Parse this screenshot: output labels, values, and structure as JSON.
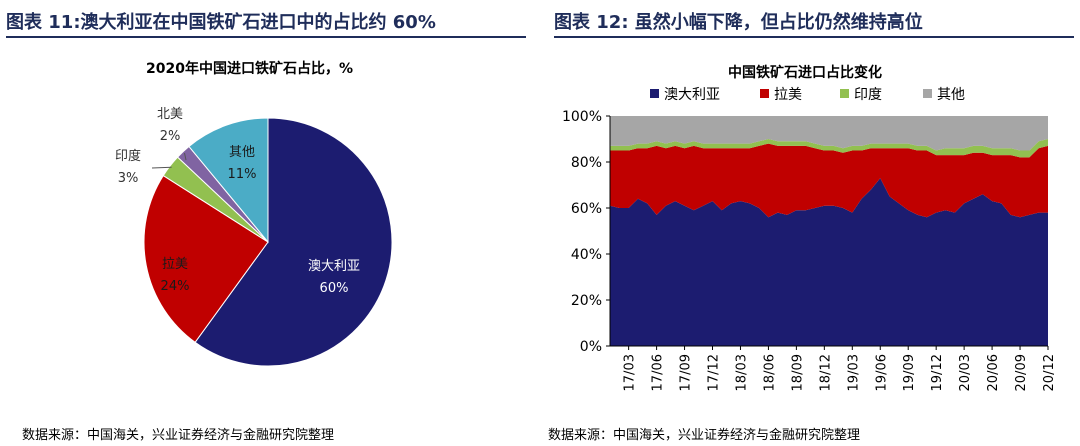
{
  "figures": {
    "left_title": "图表 11:澳大利亚在中国铁矿石进口中的占比约 60%",
    "right_title": "图表 12: 虽然小幅下降，但占比仍然维持高位",
    "left_source": "数据来源：中国海关，兴业证券经济与金融研究院整理",
    "right_source": "数据来源：中国海关，兴业证券经济与金融研究院整理"
  },
  "chart_data": [
    {
      "type": "pie",
      "title": "2020年中国进口铁矿石占比，%",
      "slices": [
        {
          "name": "澳大利亚",
          "value": 60,
          "label": "60%",
          "color": "#1c1c70"
        },
        {
          "name": "拉美",
          "value": 24,
          "label": "24%",
          "color": "#c00000"
        },
        {
          "name": "印度",
          "value": 3,
          "label": "3%",
          "color": "#92c050"
        },
        {
          "name": "北美",
          "value": 2,
          "label": "2%",
          "color": "#8064a2"
        },
        {
          "name": "其他",
          "value": 11,
          "label": "11%",
          "color": "#4bacc6"
        }
      ]
    },
    {
      "type": "area",
      "stacked": true,
      "title": "中国铁矿石进口占比变化",
      "legend_position": "top",
      "x_ticks": [
        "17/03",
        "17/06",
        "17/09",
        "17/12",
        "18/03",
        "18/06",
        "18/09",
        "18/12",
        "19/03",
        "19/06",
        "19/09",
        "19/12",
        "20/03",
        "20/06",
        "20/09",
        "20/12"
      ],
      "x": [
        "17/01",
        "17/02",
        "17/03",
        "17/04",
        "17/05",
        "17/06",
        "17/07",
        "17/08",
        "17/09",
        "17/10",
        "17/11",
        "17/12",
        "18/01",
        "18/02",
        "18/03",
        "18/04",
        "18/05",
        "18/06",
        "18/07",
        "18/08",
        "18/09",
        "18/10",
        "18/11",
        "18/12",
        "19/01",
        "19/02",
        "19/03",
        "19/04",
        "19/05",
        "19/06",
        "19/07",
        "19/08",
        "19/09",
        "19/10",
        "19/11",
        "19/12",
        "20/01",
        "20/02",
        "20/03",
        "20/04",
        "20/05",
        "20/06",
        "20/07",
        "20/08",
        "20/09",
        "20/10",
        "20/11",
        "20/12"
      ],
      "y_ticks": [
        "0%",
        "20%",
        "40%",
        "60%",
        "80%",
        "100%"
      ],
      "ylim": [
        0,
        100
      ],
      "series": [
        {
          "name": "澳大利亚",
          "color": "#1c1c70",
          "values": [
            61,
            60,
            60,
            64,
            62,
            57,
            61,
            63,
            61,
            59,
            61,
            63,
            59,
            62,
            63,
            62,
            60,
            56,
            58,
            57,
            59,
            59,
            60,
            61,
            61,
            60,
            58,
            64,
            68,
            73,
            65,
            62,
            59,
            57,
            56,
            58,
            59,
            58,
            62,
            64,
            66,
            63,
            62,
            57,
            56,
            57,
            58,
            58
          ]
        },
        {
          "name": "拉美",
          "color": "#c00000",
          "values": [
            24,
            25,
            25,
            22,
            24,
            30,
            25,
            24,
            25,
            28,
            25,
            23,
            27,
            24,
            23,
            24,
            27,
            32,
            29,
            30,
            28,
            28,
            26,
            24,
            24,
            24,
            27,
            21,
            18,
            13,
            21,
            24,
            27,
            28,
            29,
            25,
            24,
            25,
            21,
            20,
            18,
            20,
            21,
            26,
            26,
            25,
            28,
            29
          ]
        },
        {
          "name": "印度",
          "color": "#92c050",
          "values": [
            2,
            2,
            2,
            2,
            2,
            2,
            2,
            2,
            2,
            2,
            2,
            2,
            2,
            2,
            2,
            2,
            2,
            2,
            2,
            2,
            2,
            2,
            2,
            2,
            2,
            2,
            2,
            2,
            2,
            2,
            2,
            2,
            2,
            2,
            2,
            2,
            3,
            3,
            3,
            3,
            3,
            3,
            3,
            3,
            3,
            3,
            3,
            3
          ]
        },
        {
          "name": "其他",
          "color": "#a6a6a6",
          "values": [
            13,
            13,
            13,
            12,
            12,
            11,
            12,
            11,
            12,
            11,
            12,
            12,
            12,
            12,
            12,
            12,
            11,
            10,
            11,
            11,
            11,
            11,
            12,
            13,
            13,
            14,
            13,
            13,
            12,
            12,
            12,
            12,
            12,
            13,
            13,
            15,
            14,
            14,
            14,
            13,
            13,
            14,
            14,
            14,
            15,
            15,
            11,
            10
          ]
        }
      ]
    }
  ]
}
